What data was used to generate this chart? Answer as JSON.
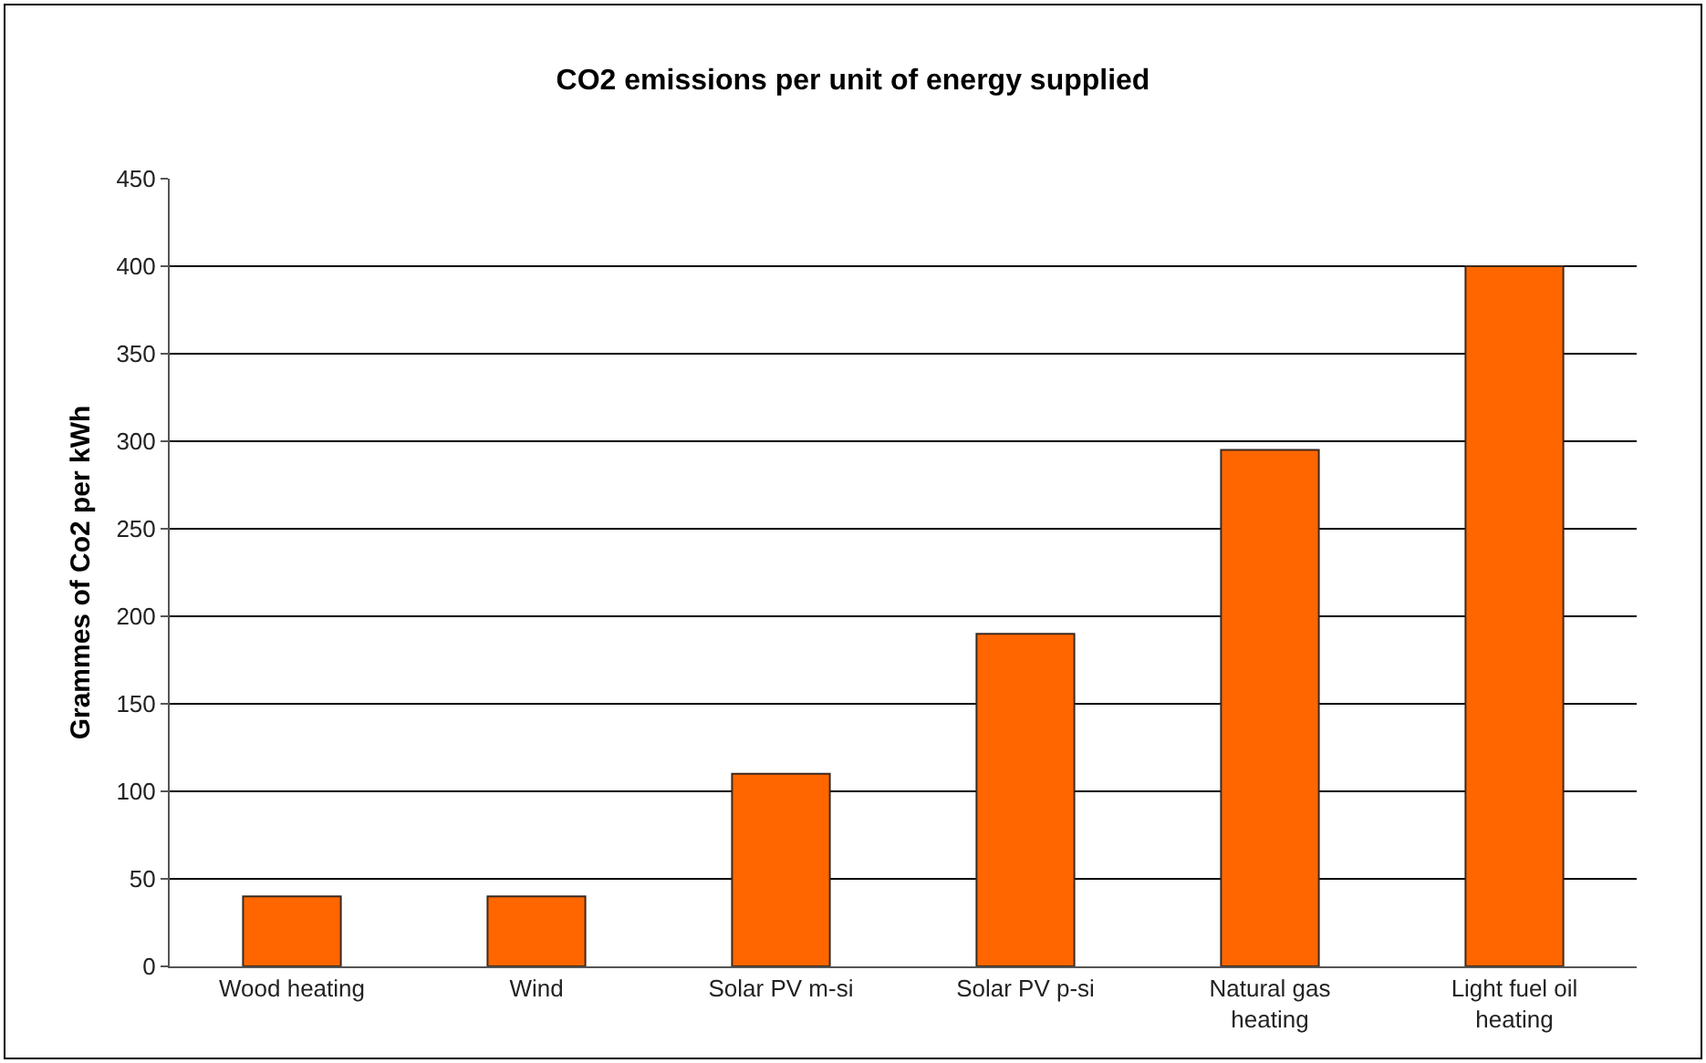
{
  "chart_data": {
    "type": "bar",
    "title": "CO2 emissions per unit of energy supplied",
    "ylabel": "Grammes of Co2 per kWh",
    "categories": [
      "Wood heating",
      "Wind",
      "Solar PV m-si",
      "Solar PV p-si",
      "Natural gas heating",
      "Light fuel oil heating"
    ],
    "values": [
      40,
      40,
      110,
      190,
      295,
      400
    ],
    "color": "#ff6600",
    "ylim": [
      0,
      450
    ],
    "yticks": [
      0,
      50,
      100,
      150,
      200,
      250,
      300,
      350,
      400,
      450
    ],
    "grid": "y"
  }
}
